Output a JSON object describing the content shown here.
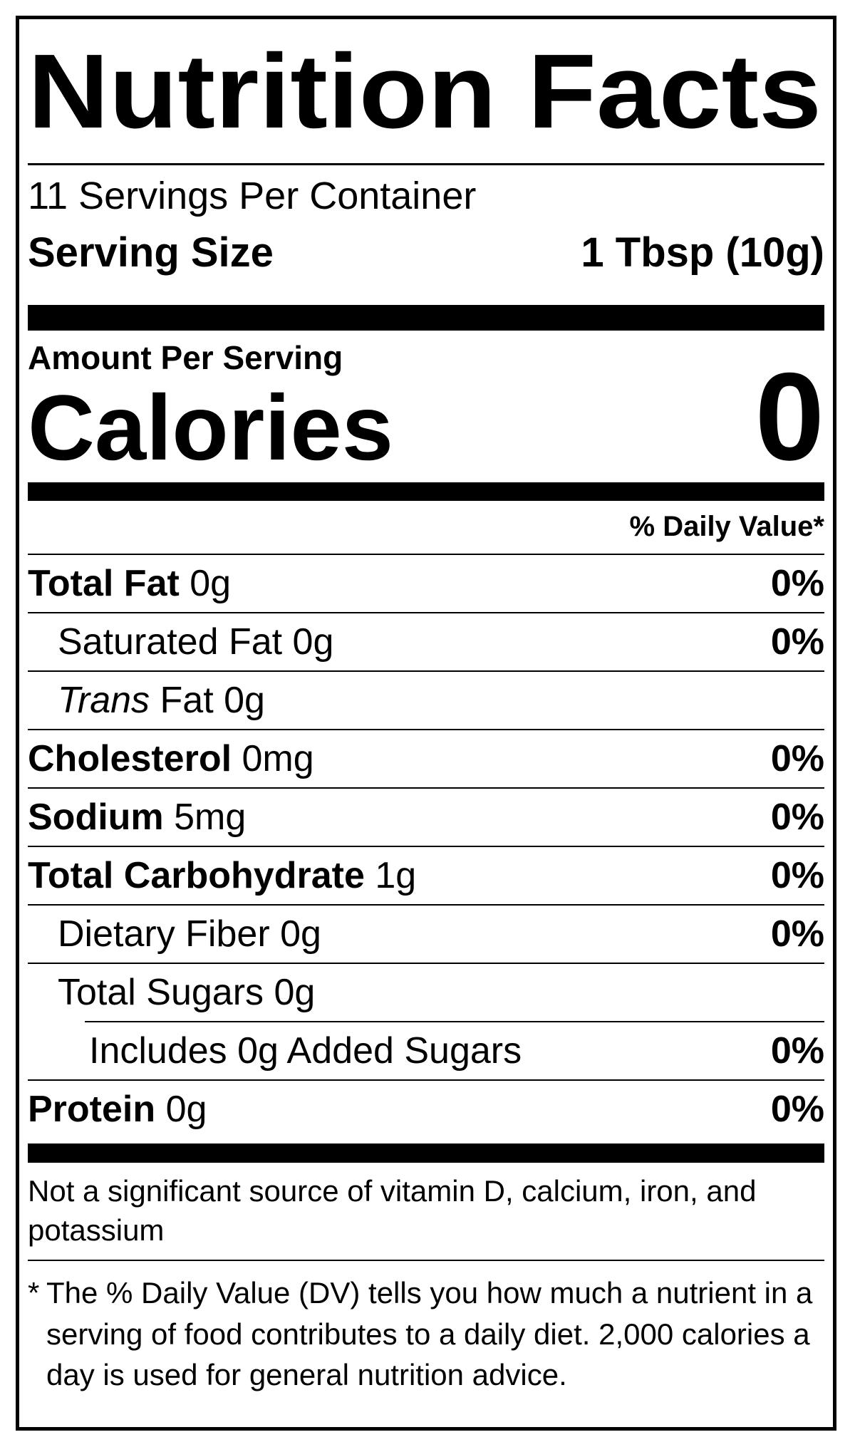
{
  "title": "Nutrition Facts",
  "servings_per_container": "11 Servings Per Container",
  "serving_size": {
    "label": "Serving Size",
    "value": "1 Tbsp (10g)"
  },
  "amount_per_serving": "Amount Per Serving",
  "calories": {
    "label": "Calories",
    "value": "0"
  },
  "daily_value_header": "% Daily Value*",
  "rows": [
    {
      "b": "Total Fat",
      "r": " 0g",
      "dv": "0%"
    },
    {
      "r": "Saturated Fat 0g",
      "dv": "0%"
    },
    {
      "i": "Trans",
      "r": " Fat 0g",
      "dv": ""
    },
    {
      "b": "Cholesterol",
      "r": " 0mg",
      "dv": "0%"
    },
    {
      "b": "Sodium",
      "r": " 5mg",
      "dv": "0%"
    },
    {
      "b": "Total Carbohydrate",
      "r": " 1g",
      "dv": "0%"
    },
    {
      "r": "Dietary Fiber 0g",
      "dv": "0%"
    },
    {
      "r": "Total Sugars 0g",
      "dv": ""
    },
    {
      "r": "Includes 0g Added Sugars",
      "dv": "0%"
    },
    {
      "b": "Protein",
      "r": " 0g",
      "dv": "0%"
    }
  ],
  "insignificant_note": "Not a significant source of vitamin D, calcium, iron, and potassium",
  "footnote": {
    "marker": "*",
    "text": "The % Daily Value (DV) tells you how much a nutrient in a serving of food contributes to a daily diet. 2,000 calories a day is used for general nutrition advice."
  },
  "colors": {
    "ink": "#000000",
    "background": "#ffffff"
  }
}
